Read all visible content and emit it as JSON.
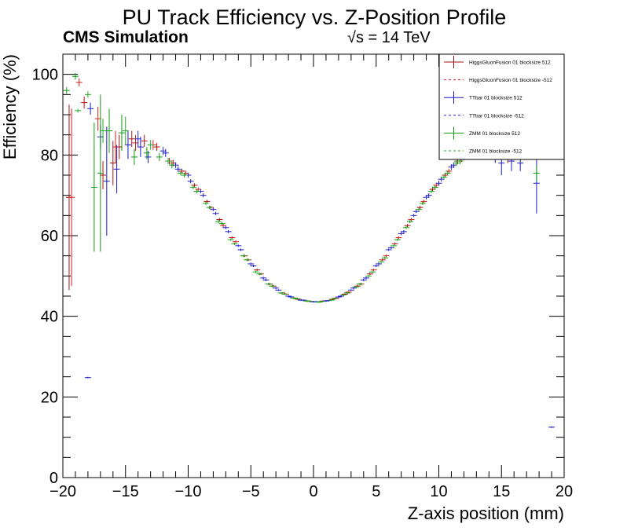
{
  "chart_data": {
    "type": "scatter",
    "title": "PU Track Efficiency vs. Z-Position Profile",
    "subtitle_left": "CMS Simulation",
    "subtitle_right": "√s = 14 TeV",
    "xlabel": "Z-axis position (mm)",
    "ylabel": "Efficiency (%)",
    "xlim": [
      -20,
      20
    ],
    "ylim": [
      0,
      105
    ],
    "xticks": [
      -20,
      -15,
      -10,
      -5,
      0,
      5,
      10,
      15,
      20
    ],
    "xtick_labels": [
      "−20",
      "−15",
      "−10",
      "−5",
      "0",
      "5",
      "10",
      "15",
      "20"
    ],
    "yticks": [
      0,
      20,
      40,
      60,
      80,
      100
    ],
    "ytick_labels": [
      "0",
      "20",
      "40",
      "60",
      "80",
      "100"
    ],
    "grid": false,
    "legend_position": "top-right",
    "series": [
      {
        "name": "HiggsGluonFusion 01 blocksize 512",
        "color": "#aa1111",
        "style": "solid",
        "points": [
          {
            "x": -19.5,
            "y": 69.5,
            "err": 23.0
          },
          {
            "x": -18.3,
            "y": 93.0,
            "err": 1.5
          },
          {
            "x": -16.8,
            "y": 75.0,
            "err": 3.5
          },
          {
            "x": -16.0,
            "y": 78.0,
            "err": 5.5
          },
          {
            "x": -15.5,
            "y": 82.0,
            "err": 3.0
          },
          {
            "x": -14.5,
            "y": 84.0,
            "err": 2.0
          },
          {
            "x": -13.5,
            "y": 83.5,
            "err": 1.5
          },
          {
            "x": -12.5,
            "y": 82.0,
            "err": 1.0
          },
          {
            "x": -11.5,
            "y": 78.5,
            "err": 0.8
          },
          {
            "x": -10.5,
            "y": 76.0,
            "err": 0.6
          },
          {
            "x": -9.5,
            "y": 72.5,
            "err": 0.5
          },
          {
            "x": -8.5,
            "y": 68.5,
            "err": 0.4
          },
          {
            "x": -7.5,
            "y": 64.0,
            "err": 0.4
          },
          {
            "x": -6.5,
            "y": 59.5,
            "err": 0.3
          },
          {
            "x": -5.5,
            "y": 55.0,
            "err": 0.3
          },
          {
            "x": -4.5,
            "y": 51.5,
            "err": 0.3
          },
          {
            "x": -3.5,
            "y": 48.0,
            "err": 0.3
          },
          {
            "x": -2.5,
            "y": 45.8,
            "err": 0.2
          },
          {
            "x": -1.5,
            "y": 44.5,
            "err": 0.2
          },
          {
            "x": -0.5,
            "y": 43.8,
            "err": 0.2
          },
          {
            "x": 0.5,
            "y": 43.6,
            "err": 0.2
          },
          {
            "x": 1.5,
            "y": 44.2,
            "err": 0.2
          },
          {
            "x": 2.5,
            "y": 45.5,
            "err": 0.2
          },
          {
            "x": 3.5,
            "y": 47.5,
            "err": 0.3
          },
          {
            "x": 4.5,
            "y": 50.5,
            "err": 0.3
          },
          {
            "x": 5.5,
            "y": 54.0,
            "err": 0.3
          },
          {
            "x": 6.5,
            "y": 58.0,
            "err": 0.3
          },
          {
            "x": 7.5,
            "y": 62.5,
            "err": 0.4
          },
          {
            "x": 8.5,
            "y": 67.0,
            "err": 0.4
          },
          {
            "x": 9.5,
            "y": 71.5,
            "err": 0.5
          },
          {
            "x": 10.5,
            "y": 75.0,
            "err": 0.6
          },
          {
            "x": 11.5,
            "y": 78.5,
            "err": 0.8
          },
          {
            "x": 13.5,
            "y": 80.5,
            "err": 1.2
          },
          {
            "x": 15.5,
            "y": 80.0,
            "err": 2.0
          }
        ]
      },
      {
        "name": "HiggsGluonFusion 01 blocksize -512",
        "color": "#cc2222",
        "style": "dashed",
        "points": [
          {
            "x": -19.3,
            "y": 69.5,
            "err": 22.0
          },
          {
            "x": -18.7,
            "y": 98.0,
            "err": 1.0
          },
          {
            "x": -17.2,
            "y": 89.0,
            "err": 3.0
          },
          {
            "x": -15.8,
            "y": 82.0,
            "err": 4.0
          },
          {
            "x": -14.2,
            "y": 83.0,
            "err": 2.0
          },
          {
            "x": -12.8,
            "y": 82.5,
            "err": 1.2
          },
          {
            "x": -11.2,
            "y": 78.0,
            "err": 0.8
          },
          {
            "x": -10.2,
            "y": 75.5,
            "err": 0.6
          },
          {
            "x": -9.2,
            "y": 71.5,
            "err": 0.5
          },
          {
            "x": -8.2,
            "y": 67.0,
            "err": 0.4
          },
          {
            "x": -7.2,
            "y": 62.5,
            "err": 0.4
          },
          {
            "x": -6.2,
            "y": 58.5,
            "err": 0.3
          },
          {
            "x": -5.2,
            "y": 54.0,
            "err": 0.3
          },
          {
            "x": -4.2,
            "y": 50.5,
            "err": 0.3
          },
          {
            "x": -3.2,
            "y": 47.5,
            "err": 0.3
          },
          {
            "x": -2.2,
            "y": 45.5,
            "err": 0.2
          },
          {
            "x": -1.2,
            "y": 44.2,
            "err": 0.2
          },
          {
            "x": -0.2,
            "y": 43.7,
            "err": 0.2
          },
          {
            "x": 0.8,
            "y": 43.8,
            "err": 0.2
          },
          {
            "x": 1.8,
            "y": 44.5,
            "err": 0.2
          },
          {
            "x": 2.8,
            "y": 46.0,
            "err": 0.2
          },
          {
            "x": 3.8,
            "y": 48.0,
            "err": 0.3
          },
          {
            "x": 4.8,
            "y": 51.5,
            "err": 0.3
          },
          {
            "x": 5.8,
            "y": 55.0,
            "err": 0.3
          },
          {
            "x": 6.8,
            "y": 59.5,
            "err": 0.3
          },
          {
            "x": 7.8,
            "y": 64.0,
            "err": 0.4
          },
          {
            "x": 8.8,
            "y": 68.5,
            "err": 0.4
          },
          {
            "x": 9.8,
            "y": 72.5,
            "err": 0.5
          },
          {
            "x": 10.8,
            "y": 76.0,
            "err": 0.6
          },
          {
            "x": 11.8,
            "y": 79.0,
            "err": 0.8
          }
        ]
      },
      {
        "name": "TTbar 01 blocksize 512",
        "color": "#1a1acc",
        "style": "solid",
        "points": [
          {
            "x": -18.0,
            "y": 24.8,
            "err": 0.2
          },
          {
            "x": -17.8,
            "y": 91.5,
            "err": 1.5
          },
          {
            "x": -17.0,
            "y": 84.5,
            "err": 3.0
          },
          {
            "x": -16.5,
            "y": 73.5,
            "err": 13.5
          },
          {
            "x": -15.7,
            "y": 76.5,
            "err": 6.0
          },
          {
            "x": -14.8,
            "y": 82.5,
            "err": 3.5
          },
          {
            "x": -13.8,
            "y": 82.0,
            "err": 2.5
          },
          {
            "x": -13.2,
            "y": 79.5,
            "err": 1.5
          },
          {
            "x": -11.8,
            "y": 80.5,
            "err": 1.0
          },
          {
            "x": -10.8,
            "y": 76.5,
            "err": 0.7
          },
          {
            "x": -9.8,
            "y": 73.5,
            "err": 0.5
          },
          {
            "x": -8.8,
            "y": 70.0,
            "err": 0.5
          },
          {
            "x": -7.8,
            "y": 65.5,
            "err": 0.4
          },
          {
            "x": -6.8,
            "y": 61.0,
            "err": 0.4
          },
          {
            "x": -5.8,
            "y": 56.5,
            "err": 0.3
          },
          {
            "x": -4.8,
            "y": 52.5,
            "err": 0.3
          },
          {
            "x": -3.8,
            "y": 49.0,
            "err": 0.3
          },
          {
            "x": -2.8,
            "y": 46.5,
            "err": 0.2
          },
          {
            "x": -1.8,
            "y": 44.8,
            "err": 0.2
          },
          {
            "x": -0.8,
            "y": 44.0,
            "err": 0.2
          },
          {
            "x": 0.2,
            "y": 43.6,
            "err": 0.2
          },
          {
            "x": 1.2,
            "y": 43.9,
            "err": 0.2
          },
          {
            "x": 2.2,
            "y": 45.0,
            "err": 0.2
          },
          {
            "x": 3.2,
            "y": 47.0,
            "err": 0.3
          },
          {
            "x": 4.2,
            "y": 49.5,
            "err": 0.3
          },
          {
            "x": 5.2,
            "y": 53.0,
            "err": 0.3
          },
          {
            "x": 6.2,
            "y": 57.0,
            "err": 0.3
          },
          {
            "x": 7.2,
            "y": 61.0,
            "err": 0.4
          },
          {
            "x": 8.2,
            "y": 66.0,
            "err": 0.4
          },
          {
            "x": 9.2,
            "y": 70.0,
            "err": 0.5
          },
          {
            "x": 10.2,
            "y": 74.0,
            "err": 0.6
          },
          {
            "x": 11.2,
            "y": 77.5,
            "err": 0.7
          },
          {
            "x": 14.5,
            "y": 79.5,
            "err": 1.5
          },
          {
            "x": 15.0,
            "y": 78.0,
            "err": 3.0
          },
          {
            "x": 15.8,
            "y": 78.5,
            "err": 2.5
          },
          {
            "x": 16.5,
            "y": 78.0,
            "err": 2.0
          },
          {
            "x": 17.8,
            "y": 73.0,
            "err": 7.5
          },
          {
            "x": 19.0,
            "y": 12.5,
            "err": 0.2
          }
        ]
      },
      {
        "name": "TTbar 01 blocksize -512",
        "color": "#2222dd",
        "style": "dashed",
        "points": [
          {
            "x": -14.0,
            "y": 84.0,
            "err": 2.0
          },
          {
            "x": -12.0,
            "y": 81.0,
            "err": 1.0
          },
          {
            "x": -11.0,
            "y": 77.5,
            "err": 0.7
          },
          {
            "x": -10.0,
            "y": 75.0,
            "err": 0.6
          },
          {
            "x": -9.0,
            "y": 71.0,
            "err": 0.5
          },
          {
            "x": -8.0,
            "y": 66.5,
            "err": 0.4
          },
          {
            "x": -7.0,
            "y": 62.0,
            "err": 0.4
          },
          {
            "x": -6.0,
            "y": 57.5,
            "err": 0.3
          },
          {
            "x": -5.0,
            "y": 53.0,
            "err": 0.3
          },
          {
            "x": -4.0,
            "y": 49.5,
            "err": 0.3
          },
          {
            "x": -3.0,
            "y": 47.0,
            "err": 0.3
          },
          {
            "x": -2.0,
            "y": 45.0,
            "err": 0.2
          },
          {
            "x": -1.0,
            "y": 44.0,
            "err": 0.2
          },
          {
            "x": 0.0,
            "y": 43.6,
            "err": 0.2
          },
          {
            "x": 1.0,
            "y": 43.8,
            "err": 0.2
          },
          {
            "x": 2.0,
            "y": 44.8,
            "err": 0.2
          },
          {
            "x": 3.0,
            "y": 46.5,
            "err": 0.2
          },
          {
            "x": 4.0,
            "y": 49.0,
            "err": 0.3
          },
          {
            "x": 5.0,
            "y": 52.5,
            "err": 0.3
          },
          {
            "x": 6.0,
            "y": 56.5,
            "err": 0.3
          },
          {
            "x": 7.0,
            "y": 60.5,
            "err": 0.4
          },
          {
            "x": 8.0,
            "y": 65.0,
            "err": 0.4
          },
          {
            "x": 9.0,
            "y": 69.5,
            "err": 0.5
          },
          {
            "x": 10.0,
            "y": 73.0,
            "err": 0.6
          },
          {
            "x": 11.0,
            "y": 77.0,
            "err": 0.7
          },
          {
            "x": 12.0,
            "y": 79.5,
            "err": 0.8
          }
        ]
      },
      {
        "name": "ZMM 01 blocksize 512",
        "color": "#119911",
        "style": "solid",
        "points": [
          {
            "x": -19.7,
            "y": 96.0,
            "err": 0.8
          },
          {
            "x": -19.0,
            "y": 99.5,
            "err": 0.8
          },
          {
            "x": -17.5,
            "y": 72.0,
            "err": 16.0
          },
          {
            "x": -17.0,
            "y": 75.5,
            "err": 19.5
          },
          {
            "x": -16.3,
            "y": 86.0,
            "err": 5.5
          },
          {
            "x": -15.3,
            "y": 85.5,
            "err": 4.5
          },
          {
            "x": -14.3,
            "y": 79.5,
            "err": 2.0
          },
          {
            "x": -13.3,
            "y": 80.5,
            "err": 1.5
          },
          {
            "x": -12.3,
            "y": 79.5,
            "err": 1.0
          },
          {
            "x": -11.3,
            "y": 77.5,
            "err": 0.8
          },
          {
            "x": -10.3,
            "y": 75.0,
            "err": 0.6
          },
          {
            "x": -9.3,
            "y": 71.0,
            "err": 0.5
          },
          {
            "x": -8.3,
            "y": 67.0,
            "err": 0.4
          },
          {
            "x": -7.3,
            "y": 63.0,
            "err": 0.4
          },
          {
            "x": -6.3,
            "y": 58.0,
            "err": 0.3
          },
          {
            "x": -5.3,
            "y": 54.0,
            "err": 0.3
          },
          {
            "x": -4.3,
            "y": 50.5,
            "err": 0.3
          },
          {
            "x": -3.3,
            "y": 47.5,
            "err": 0.3
          },
          {
            "x": -2.3,
            "y": 45.5,
            "err": 0.2
          },
          {
            "x": -1.3,
            "y": 44.3,
            "err": 0.2
          },
          {
            "x": -0.3,
            "y": 43.7,
            "err": 0.2
          },
          {
            "x": 0.7,
            "y": 43.7,
            "err": 0.2
          },
          {
            "x": 1.7,
            "y": 44.4,
            "err": 0.2
          },
          {
            "x": 2.7,
            "y": 45.8,
            "err": 0.2
          },
          {
            "x": 3.7,
            "y": 48.0,
            "err": 0.3
          },
          {
            "x": 4.7,
            "y": 51.0,
            "err": 0.3
          },
          {
            "x": 5.7,
            "y": 54.5,
            "err": 0.3
          },
          {
            "x": 6.7,
            "y": 59.0,
            "err": 0.3
          },
          {
            "x": 7.7,
            "y": 63.5,
            "err": 0.4
          },
          {
            "x": 8.7,
            "y": 68.0,
            "err": 0.4
          },
          {
            "x": 9.7,
            "y": 72.0,
            "err": 0.5
          },
          {
            "x": 10.7,
            "y": 75.5,
            "err": 0.6
          },
          {
            "x": 11.7,
            "y": 78.5,
            "err": 0.8
          },
          {
            "x": 17.8,
            "y": 75.5,
            "err": 2.0
          }
        ]
      },
      {
        "name": "ZMM 01 blocksize -512",
        "color": "#22aa22",
        "style": "dashed",
        "points": [
          {
            "x": -18.8,
            "y": 91.0,
            "err": 0.5
          },
          {
            "x": -18.0,
            "y": 95.0,
            "err": 0.8
          },
          {
            "x": -16.8,
            "y": 86.0,
            "err": 3.0
          },
          {
            "x": -15.0,
            "y": 86.0,
            "err": 3.5
          },
          {
            "x": -13.0,
            "y": 82.5,
            "err": 1.2
          },
          {
            "x": -11.6,
            "y": 78.5,
            "err": 0.8
          },
          {
            "x": -10.6,
            "y": 75.5,
            "err": 0.6
          },
          {
            "x": -9.6,
            "y": 72.0,
            "err": 0.5
          },
          {
            "x": -8.6,
            "y": 68.0,
            "err": 0.4
          },
          {
            "x": -7.6,
            "y": 63.5,
            "err": 0.4
          },
          {
            "x": -6.6,
            "y": 59.0,
            "err": 0.3
          },
          {
            "x": -5.6,
            "y": 55.0,
            "err": 0.3
          },
          {
            "x": -4.6,
            "y": 51.0,
            "err": 0.3
          },
          {
            "x": -3.6,
            "y": 48.0,
            "err": 0.3
          },
          {
            "x": -2.6,
            "y": 45.8,
            "err": 0.2
          },
          {
            "x": -1.6,
            "y": 44.5,
            "err": 0.2
          },
          {
            "x": -0.6,
            "y": 43.8,
            "err": 0.2
          },
          {
            "x": 0.4,
            "y": 43.5,
            "err": 0.2
          },
          {
            "x": 1.4,
            "y": 44.0,
            "err": 0.2
          },
          {
            "x": 2.4,
            "y": 45.3,
            "err": 0.2
          },
          {
            "x": 3.4,
            "y": 47.3,
            "err": 0.3
          },
          {
            "x": 4.4,
            "y": 50.0,
            "err": 0.3
          },
          {
            "x": 5.4,
            "y": 53.5,
            "err": 0.3
          },
          {
            "x": 6.4,
            "y": 57.5,
            "err": 0.3
          },
          {
            "x": 7.4,
            "y": 62.0,
            "err": 0.4
          },
          {
            "x": 8.4,
            "y": 66.5,
            "err": 0.4
          },
          {
            "x": 9.4,
            "y": 71.0,
            "err": 0.5
          },
          {
            "x": 10.4,
            "y": 74.5,
            "err": 0.6
          },
          {
            "x": 11.4,
            "y": 78.0,
            "err": 0.7
          }
        ]
      }
    ]
  }
}
